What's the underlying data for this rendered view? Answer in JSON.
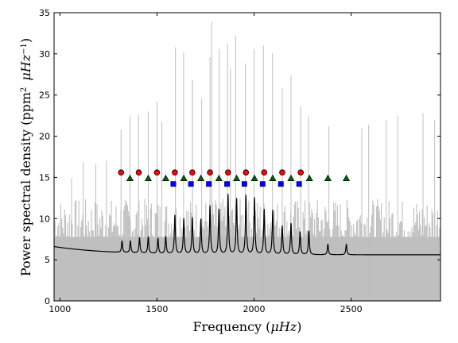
{
  "chart_data": {
    "type": "line",
    "xlabel_main": "Frequency (",
    "xlabel_unit": "μHz",
    "xlabel_close": ")",
    "ylabel_main": "Power spectral density (",
    "ylabel_unit1": "ppm",
    "ylabel_unit1_exp": "2",
    "ylabel_unit2": "μHz",
    "ylabel_unit2_exp": "−1",
    "ylabel_close": ")",
    "xlim": [
      970,
      2960
    ],
    "ylim": [
      0,
      35
    ],
    "x_ticks": [
      1000,
      1500,
      2000,
      2500
    ],
    "y_ticks": [
      0,
      5,
      10,
      15,
      20,
      25,
      30,
      35
    ],
    "noise_series": {
      "color": "#bfbfbf",
      "baseline_upper": 10.8,
      "spikes": [
        {
          "x": 1315,
          "y": 20.8
        },
        {
          "x": 1361,
          "y": 22.4
        },
        {
          "x": 1405,
          "y": 22.6
        },
        {
          "x": 1455,
          "y": 23.0
        },
        {
          "x": 1500,
          "y": 24.2
        },
        {
          "x": 1525,
          "y": 21.8
        },
        {
          "x": 1595,
          "y": 30.8
        },
        {
          "x": 1637,
          "y": 30.2
        },
        {
          "x": 1683,
          "y": 26.8
        },
        {
          "x": 1730,
          "y": 24.6
        },
        {
          "x": 1773,
          "y": 29.6
        },
        {
          "x": 1782,
          "y": 33.9
        },
        {
          "x": 1820,
          "y": 30.6
        },
        {
          "x": 1863,
          "y": 31.2
        },
        {
          "x": 1878,
          "y": 28.2
        },
        {
          "x": 1905,
          "y": 32.2
        },
        {
          "x": 1955,
          "y": 28.8
        },
        {
          "x": 2000,
          "y": 30.6
        },
        {
          "x": 2048,
          "y": 31.0
        },
        {
          "x": 2095,
          "y": 30.1
        },
        {
          "x": 2145,
          "y": 25.8
        },
        {
          "x": 2190,
          "y": 27.4
        },
        {
          "x": 2240,
          "y": 23.6
        },
        {
          "x": 2280,
          "y": 22.4
        },
        {
          "x": 2385,
          "y": 21.2
        },
        {
          "x": 2555,
          "y": 21.0
        },
        {
          "x": 2590,
          "y": 21.4
        },
        {
          "x": 2680,
          "y": 22.0
        },
        {
          "x": 2740,
          "y": 22.5
        },
        {
          "x": 2870,
          "y": 22.8
        },
        {
          "x": 2930,
          "y": 22.0
        },
        {
          "x": 1120,
          "y": 16.8
        },
        {
          "x": 1185,
          "y": 16.6
        },
        {
          "x": 1240,
          "y": 17.0
        },
        {
          "x": 1060,
          "y": 14.9
        }
      ]
    },
    "fit_series": {
      "color": "#000000",
      "background_start": 6.6,
      "background_end": 5.6,
      "peaks": [
        {
          "x": 1320,
          "h": 7.3
        },
        {
          "x": 1363,
          "h": 7.3
        },
        {
          "x": 1410,
          "h": 7.7
        },
        {
          "x": 1455,
          "h": 7.8
        },
        {
          "x": 1505,
          "h": 7.6
        },
        {
          "x": 1545,
          "h": 7.8
        },
        {
          "x": 1592,
          "h": 10.4
        },
        {
          "x": 1638,
          "h": 10.0
        },
        {
          "x": 1682,
          "h": 10.1
        },
        {
          "x": 1726,
          "h": 9.9
        },
        {
          "x": 1773,
          "h": 11.5
        },
        {
          "x": 1819,
          "h": 11.1
        },
        {
          "x": 1866,
          "h": 12.9
        },
        {
          "x": 1910,
          "h": 12.4
        },
        {
          "x": 1958,
          "h": 12.8
        },
        {
          "x": 2002,
          "h": 12.5
        },
        {
          "x": 2052,
          "h": 11.1
        },
        {
          "x": 2096,
          "h": 11.0
        },
        {
          "x": 2145,
          "h": 9.1
        },
        {
          "x": 2190,
          "h": 9.4
        },
        {
          "x": 2237,
          "h": 8.4
        },
        {
          "x": 2282,
          "h": 8.5
        },
        {
          "x": 2380,
          "h": 6.9
        },
        {
          "x": 2475,
          "h": 6.9
        }
      ]
    },
    "mode_markers": [
      {
        "name": "circles",
        "shape": "circle",
        "color": "#ff0000",
        "y": 15.6,
        "x": [
          1315,
          1406,
          1500,
          1592,
          1682,
          1773,
          1866,
          1958,
          2052,
          2145,
          2240
        ]
      },
      {
        "name": "triangles",
        "shape": "triangle",
        "color": "#006400",
        "y": 14.9,
        "x": [
          1361,
          1455,
          1545,
          1638,
          1726,
          1819,
          1910,
          2002,
          2096,
          2190,
          2285,
          2380,
          2475
        ]
      },
      {
        "name": "squares",
        "shape": "square",
        "color": "#0000ff",
        "y": 14.2,
        "x": [
          1584,
          1675,
          1767,
          1861,
          1950,
          2044,
          2138,
          2232
        ]
      }
    ]
  }
}
